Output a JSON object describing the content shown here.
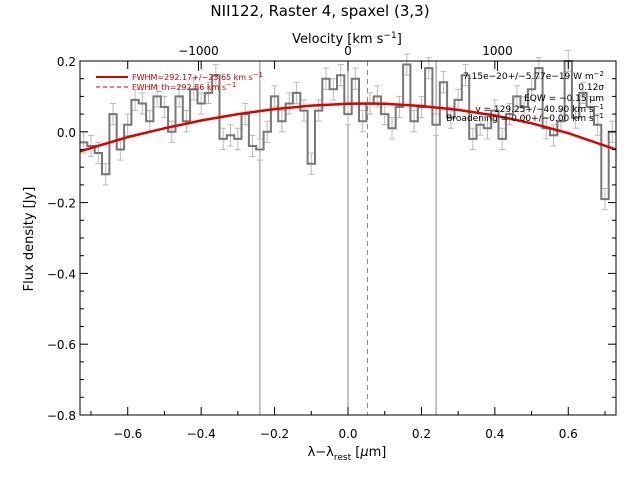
{
  "chart_data": {
    "type": "line",
    "title": "NII122, Raster 4, spaxel (3,3)",
    "xlabel_main": "λ−λ",
    "xlabel_sub": "rest",
    "xlabel_unit_open": " [",
    "xlabel_unit_mu": "μ",
    "xlabel_unit_close": "m]",
    "ylabel": "Flux density [Jy]",
    "top_xlabel_main": "Velocity [km s",
    "top_xlabel_sup": "−1",
    "top_xlabel_close": "]",
    "xlim": [
      -0.73,
      0.73
    ],
    "ylim": [
      -0.8,
      0.2
    ],
    "top_xlim": [
      -1793,
      1793
    ],
    "x_ticks": [
      -0.6,
      -0.4,
      -0.2,
      0.0,
      0.2,
      0.4,
      0.6
    ],
    "x_tick_labels": [
      "−0.6",
      "−0.4",
      "−0.2",
      "0.0",
      "0.2",
      "0.4",
      "0.6"
    ],
    "y_ticks": [
      -0.8,
      -0.6,
      -0.4,
      -0.2,
      0.0,
      0.2
    ],
    "y_tick_labels": [
      "−0.8",
      "−0.6",
      "−0.4",
      "−0.2",
      "0.0",
      "0.2"
    ],
    "top_ticks": [
      -1000,
      0,
      1000
    ],
    "top_tick_labels": [
      "−1000",
      "0",
      "1000"
    ],
    "vertical_lines_solid": [
      -0.24,
      0.0,
      0.24
    ],
    "vertical_line_dashed": 0.053,
    "legend": [
      {
        "text": "FWHM=292.17+/−23.65 km s",
        "sup": "−1",
        "style": "solid"
      },
      {
        "text": "FWHM_th=292.86 km s",
        "sup": "−1",
        "style": "dashed"
      }
    ],
    "annotations": [
      {
        "text": "7.15e−20+/−5.77e−19 W m",
        "sup": "−2"
      },
      {
        "text": "0.12σ",
        "sup": ""
      },
      {
        "text": "EQW = −0.15 μm",
        "sup": ""
      },
      {
        "text": "v = 129.25+/−40.90 km s",
        "sup": "−1"
      },
      {
        "text": "Broadening = 0.00+/−0.00 km s",
        "sup": "−1"
      }
    ],
    "series": [
      {
        "style": "step",
        "color": "#777777",
        "x": [
          -0.72,
          -0.7,
          -0.68,
          -0.66,
          -0.64,
          -0.62,
          -0.6,
          -0.58,
          -0.56,
          -0.54,
          -0.52,
          -0.5,
          -0.48,
          -0.46,
          -0.44,
          -0.42,
          -0.4,
          -0.38,
          -0.36,
          -0.34,
          -0.32,
          -0.3,
          -0.28,
          -0.26,
          -0.24,
          -0.22,
          -0.2,
          -0.18,
          -0.16,
          -0.14,
          -0.12,
          -0.1,
          -0.08,
          -0.06,
          -0.04,
          -0.02,
          0.0,
          0.02,
          0.04,
          0.06,
          0.08,
          0.1,
          0.12,
          0.14,
          0.16,
          0.18,
          0.2,
          0.22,
          0.24,
          0.26,
          0.28,
          0.3,
          0.32,
          0.34,
          0.36,
          0.38,
          0.4,
          0.42,
          0.44,
          0.46,
          0.48,
          0.5,
          0.52,
          0.54,
          0.56,
          0.58,
          0.6,
          0.62,
          0.64,
          0.66,
          0.68,
          0.7,
          0.72
        ],
        "y": [
          -0.03,
          -0.04,
          -0.06,
          -0.12,
          0.05,
          -0.05,
          0.02,
          0.09,
          0.08,
          0.03,
          0.1,
          0.07,
          0.0,
          0.1,
          0.03,
          0.12,
          0.08,
          0.11,
          0.16,
          -0.02,
          -0.01,
          -0.02,
          0.05,
          -0.04,
          -0.05,
          0.0,
          0.1,
          0.03,
          0.08,
          0.11,
          0.06,
          -0.09,
          0.06,
          0.15,
          0.12,
          0.16,
          0.05,
          0.15,
          0.03,
          0.08,
          0.1,
          0.05,
          0.01,
          0.07,
          0.19,
          0.03,
          0.07,
          0.18,
          0.02,
          0.14,
          0.04,
          0.09,
          0.16,
          -0.02,
          0.02,
          0.01,
          0.06,
          -0.02,
          0.05,
          0.1,
          0.07,
          0.12,
          0.18,
          0.01,
          -0.01,
          0.03,
          0.2,
          0.04,
          0.11,
          0.07,
          0.02,
          -0.19,
          0.0
        ],
        "err": [
          0.03,
          0.03,
          0.03,
          0.03,
          0.03,
          0.03,
          0.03,
          0.03,
          0.03,
          0.03,
          0.03,
          0.03,
          0.03,
          0.03,
          0.03,
          0.03,
          0.03,
          0.03,
          0.03,
          0.03,
          0.03,
          0.03,
          0.03,
          0.03,
          0.03,
          0.03,
          0.03,
          0.03,
          0.03,
          0.03,
          0.03,
          0.03,
          0.03,
          0.03,
          0.03,
          0.03,
          0.03,
          0.03,
          0.03,
          0.03,
          0.03,
          0.03,
          0.03,
          0.03,
          0.03,
          0.03,
          0.03,
          0.03,
          0.03,
          0.03,
          0.03,
          0.03,
          0.03,
          0.03,
          0.03,
          0.03,
          0.03,
          0.03,
          0.03,
          0.03,
          0.03,
          0.03,
          0.03,
          0.03,
          0.03,
          0.03,
          0.03,
          0.03,
          0.03,
          0.03,
          0.03,
          0.03,
          0.03
        ]
      },
      {
        "style": "line",
        "color": "#dd0000",
        "x": [
          -0.73,
          -0.6,
          -0.5,
          -0.4,
          -0.3,
          -0.2,
          -0.1,
          0.0,
          0.05,
          0.1,
          0.2,
          0.3,
          0.4,
          0.5,
          0.6,
          0.73
        ],
        "y": [
          -0.055,
          -0.015,
          0.01,
          0.032,
          0.05,
          0.064,
          0.074,
          0.079,
          0.08,
          0.079,
          0.073,
          0.062,
          0.046,
          0.024,
          -0.004,
          -0.05
        ]
      }
    ]
  }
}
